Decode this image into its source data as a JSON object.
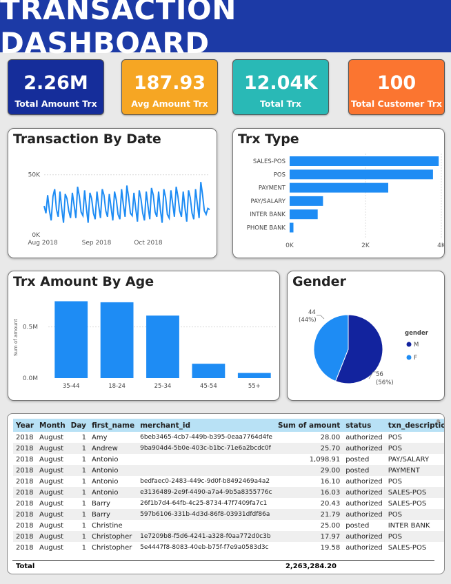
{
  "header": {
    "title": "TRANSACTION DASHBOARD"
  },
  "kpis": [
    {
      "value": "2.26M",
      "label": "Total Amount Trx",
      "color": "#152d9a"
    },
    {
      "value": "187.93",
      "label": "Avg Amount Trx",
      "color": "#f6a623"
    },
    {
      "value": "12.04K",
      "label": "Total Trx",
      "color": "#29b9b6"
    },
    {
      "value": "100",
      "label": "Total Customer Trx",
      "color": "#fb7530"
    }
  ],
  "colors": {
    "bar": "#1e8cf4",
    "line": "#1e8cf4",
    "pie_m": "#12239e",
    "pie_f": "#1e8cf4"
  },
  "chart_data": [
    {
      "id": "date",
      "type": "line",
      "title": "Transaction By Date",
      "x_ticks": [
        "Aug 2018",
        "Sep 2018",
        "Oct 2018"
      ],
      "y_ticks": [
        "0K",
        "50K"
      ],
      "ylim": [
        0,
        55000
      ],
      "values": [
        24000,
        18000,
        33000,
        20000,
        12000,
        32000,
        38000,
        21000,
        15000,
        36000,
        22000,
        10000,
        34000,
        30000,
        20000,
        14000,
        35000,
        25000,
        14000,
        40000,
        32000,
        19000,
        16000,
        37000,
        22000,
        10000,
        35000,
        30000,
        18000,
        13000,
        36000,
        24000,
        14000,
        38000,
        33000,
        20000,
        15000,
        34000,
        23000,
        12000,
        36000,
        29000,
        17000,
        13000,
        38000,
        25000,
        15000,
        41000,
        31000,
        18000,
        16000,
        35000,
        22000,
        11000,
        37000,
        30000,
        18000,
        12000,
        36000,
        24000,
        13000,
        39000,
        33000,
        19000,
        15000,
        36000,
        21000,
        10000,
        38000,
        31000,
        17000,
        14000,
        37000,
        26000,
        15000,
        40000,
        32000,
        20000,
        15000,
        36000,
        22000,
        11000,
        37000,
        31000,
        18000,
        13000,
        38000,
        26000,
        14000,
        44000,
        33000,
        20000,
        17000,
        22000,
        21000
      ]
    },
    {
      "id": "type",
      "type": "bar",
      "title": "Trx Type",
      "categories": [
        "SALES-POS",
        "POS",
        "PAYMENT",
        "PAY/SALARY",
        "INTER BANK",
        "PHONE BANK"
      ],
      "values": [
        3930,
        3780,
        2600,
        880,
        740,
        100
      ],
      "x_ticks": [
        {
          "v": 0,
          "l": "0K"
        },
        {
          "v": 2000,
          "l": "2K"
        },
        {
          "v": 4000,
          "l": "4K"
        }
      ],
      "xlim": [
        0,
        4000
      ]
    },
    {
      "id": "age",
      "type": "bar",
      "title": "Trx Amount By Age",
      "ylabel": "Sum of amount",
      "categories": [
        "35-44",
        "18-24",
        "25-34",
        "45-54",
        "55+"
      ],
      "values": [
        750000,
        740000,
        610000,
        140000,
        50000
      ],
      "y_ticks": [
        {
          "v": 0,
          "l": "0.0M"
        },
        {
          "v": 500000,
          "l": "0.5M"
        }
      ],
      "ylim": [
        0,
        800000
      ]
    },
    {
      "id": "gender",
      "type": "pie",
      "title": "Gender",
      "legend_title": "gender",
      "slices": [
        {
          "name": "M",
          "value": 56,
          "label_value": "56",
          "label_pct": "(56%)"
        },
        {
          "name": "F",
          "value": 44,
          "label_value": "44",
          "label_pct": "(44%)"
        }
      ]
    }
  ],
  "table": {
    "columns": [
      "Year",
      "Month",
      "Day",
      "first_name",
      "merchant_id",
      "Sum of amount",
      "status",
      "txn_description"
    ],
    "rows": [
      [
        "2018",
        "August",
        "1",
        "Amy",
        "6beb3465-4cb7-449b-b395-0eaa7764d4fe",
        "28.00",
        "authorized",
        "POS"
      ],
      [
        "2018",
        "August",
        "1",
        "Andrew",
        "9ba904d4-5b0e-403c-b1bc-71e6a2bcdc0f",
        "25.70",
        "authorized",
        "POS"
      ],
      [
        "2018",
        "August",
        "1",
        "Antonio",
        "",
        "1,098.91",
        "posted",
        "PAY/SALARY"
      ],
      [
        "2018",
        "August",
        "1",
        "Antonio",
        "",
        "29.00",
        "posted",
        "PAYMENT"
      ],
      [
        "2018",
        "August",
        "1",
        "Antonio",
        "bedfaec0-2483-449c-9d0f-b8492469a4a2",
        "16.10",
        "authorized",
        "POS"
      ],
      [
        "2018",
        "August",
        "1",
        "Antonio",
        "e3136489-2e9f-4490-a7a4-9b5a8355776c",
        "16.03",
        "authorized",
        "SALES-POS"
      ],
      [
        "2018",
        "August",
        "1",
        "Barry",
        "26f1b7d4-64fb-4c25-8734-47f7409fa7c1",
        "20.43",
        "authorized",
        "SALES-POS"
      ],
      [
        "2018",
        "August",
        "1",
        "Barry",
        "597b6106-331b-4d3d-86f8-03931dfdf86a",
        "21.79",
        "authorized",
        "POS"
      ],
      [
        "2018",
        "August",
        "1",
        "Christine",
        "",
        "25.00",
        "posted",
        "INTER BANK"
      ],
      [
        "2018",
        "August",
        "1",
        "Christopher",
        "1e7209b8-f5d6-4241-a328-f0aa772d0c3b",
        "17.97",
        "authorized",
        "POS"
      ],
      [
        "2018",
        "August",
        "1",
        "Christopher",
        "5e4447f8-8083-40eb-b75f-f7e9a0583d3c",
        "19.58",
        "authorized",
        "SALES-POS"
      ]
    ],
    "total_label": "Total",
    "total_value": "2,263,284.20"
  }
}
